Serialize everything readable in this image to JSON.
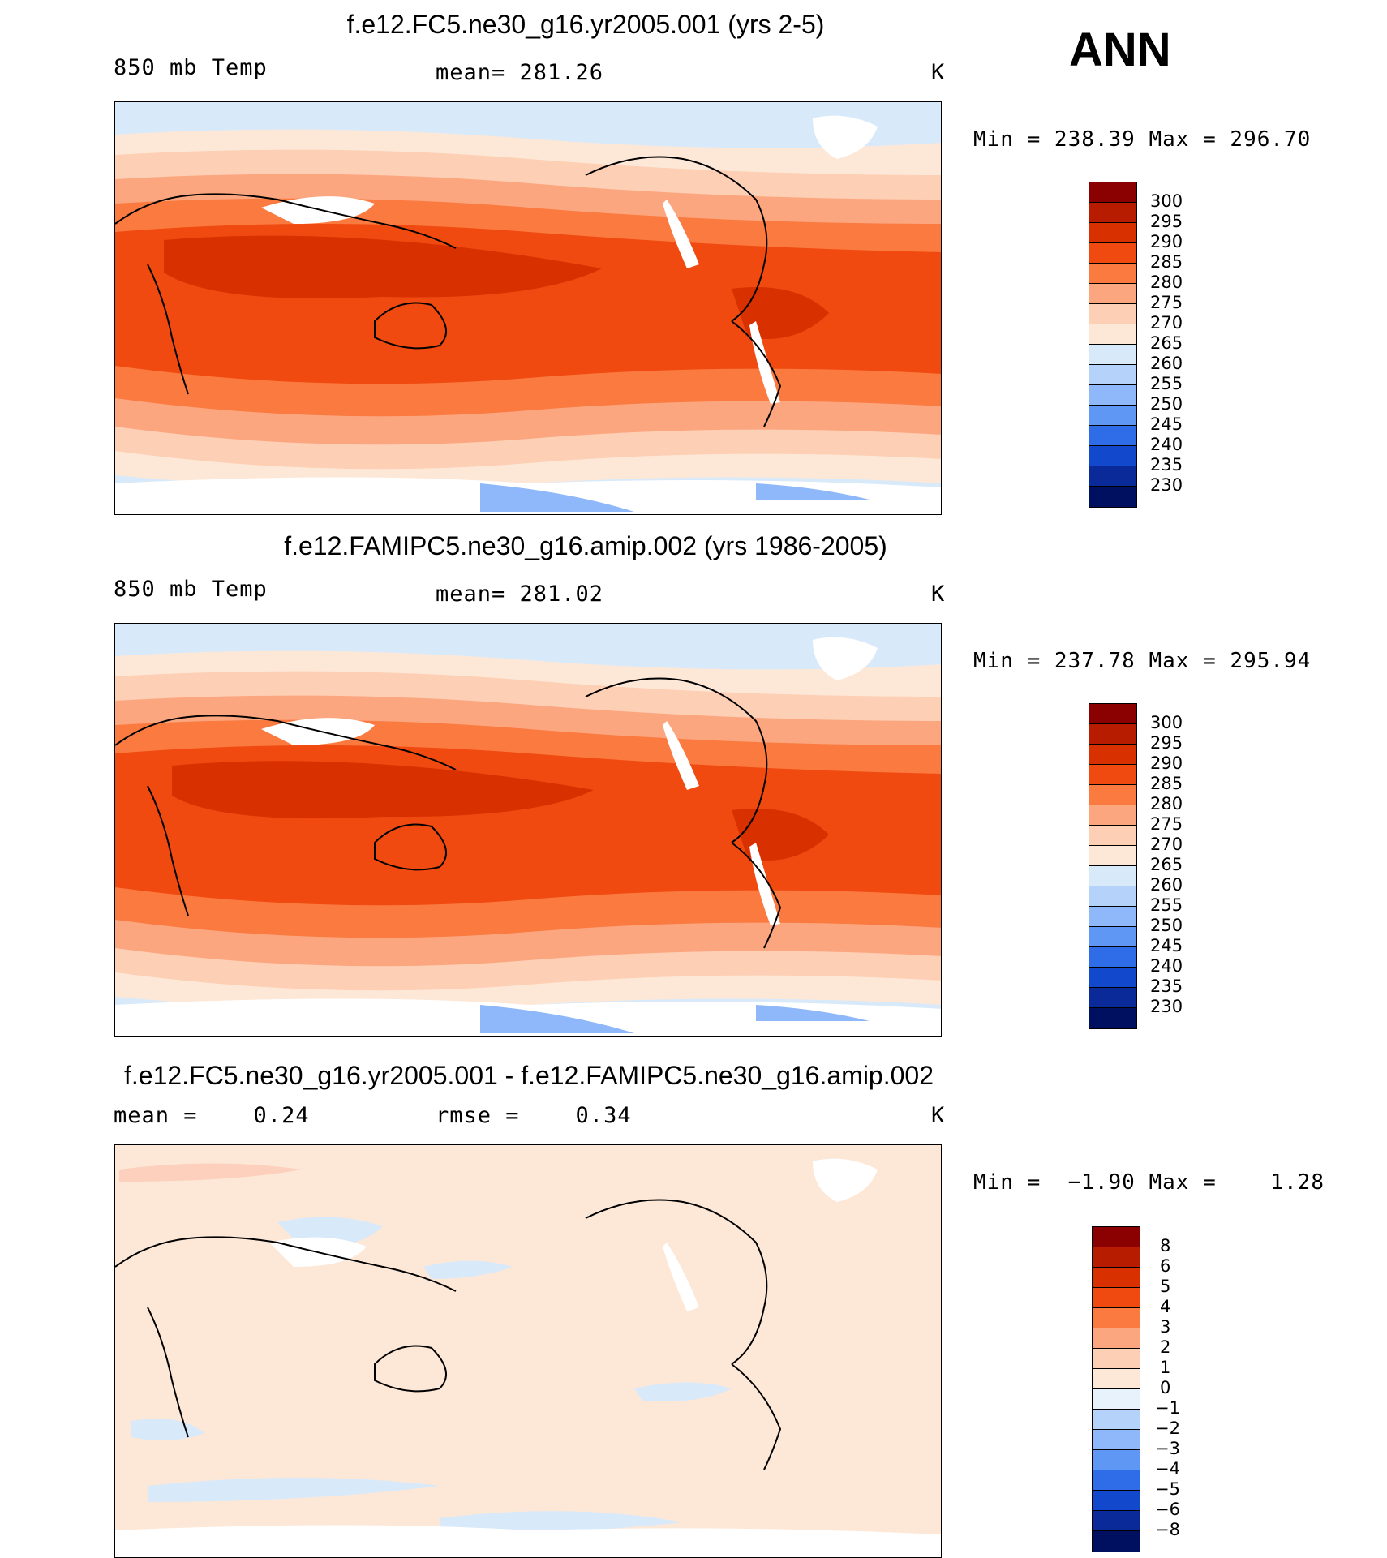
{
  "season": "ANN",
  "panels": [
    {
      "title": "f.e12.FC5.ne30_g16.yr2005.001 (yrs 2-5)",
      "left_label": "850 mb Temp",
      "center_label": "mean= 281.26",
      "units": "K",
      "minmax": "Min = 238.39 Max = 296.70",
      "levels": [
        "300",
        "295",
        "290",
        "285",
        "280",
        "275",
        "270",
        "265",
        "260",
        "255",
        "250",
        "245",
        "240",
        "235",
        "230"
      ],
      "colors": [
        "#8b0000",
        "#b81c00",
        "#d93000",
        "#f04a10",
        "#fa7a40",
        "#fca680",
        "#fdcfb4",
        "#fde8d8",
        "#d8e9fa",
        "#b5d2fb",
        "#8eb8f9",
        "#5f97f5",
        "#2f6de8",
        "#1248cc",
        "#0a2a9a",
        "#001060"
      ]
    },
    {
      "title": "f.e12.FAMIPC5.ne30_g16.amip.002 (yrs 1986-2005)",
      "left_label": "850 mb Temp",
      "center_label": "mean= 281.02",
      "units": "K",
      "minmax": "Min = 237.78 Max = 295.94",
      "levels": [
        "300",
        "295",
        "290",
        "285",
        "280",
        "275",
        "270",
        "265",
        "260",
        "255",
        "250",
        "245",
        "240",
        "235",
        "230"
      ],
      "colors": [
        "#8b0000",
        "#b81c00",
        "#d93000",
        "#f04a10",
        "#fa7a40",
        "#fca680",
        "#fdcfb4",
        "#fde8d8",
        "#d8e9fa",
        "#b5d2fb",
        "#8eb8f9",
        "#5f97f5",
        "#2f6de8",
        "#1248cc",
        "#0a2a9a",
        "#001060"
      ]
    },
    {
      "title": "f.e12.FC5.ne30_g16.yr2005.001 - f.e12.FAMIPC5.ne30_g16.amip.002",
      "left_label": "mean =    0.24",
      "center_label": "rmse =    0.34",
      "units": "K",
      "minmax": "Min =  −1.90 Max =    1.28",
      "levels": [
        "8",
        "6",
        "5",
        "4",
        "3",
        "2",
        "1",
        "0",
        "−1",
        "−2",
        "−3",
        "−4",
        "−5",
        "−6",
        "−8"
      ],
      "colors": [
        "#8b0000",
        "#b81c00",
        "#d93000",
        "#f04a10",
        "#fa7a40",
        "#fca680",
        "#fdcfb4",
        "#fde8d8",
        "#e8f2fc",
        "#b5d2fb",
        "#8eb8f9",
        "#5f97f5",
        "#2f6de8",
        "#1248cc",
        "#0a2a9a",
        "#001060"
      ]
    }
  ]
}
